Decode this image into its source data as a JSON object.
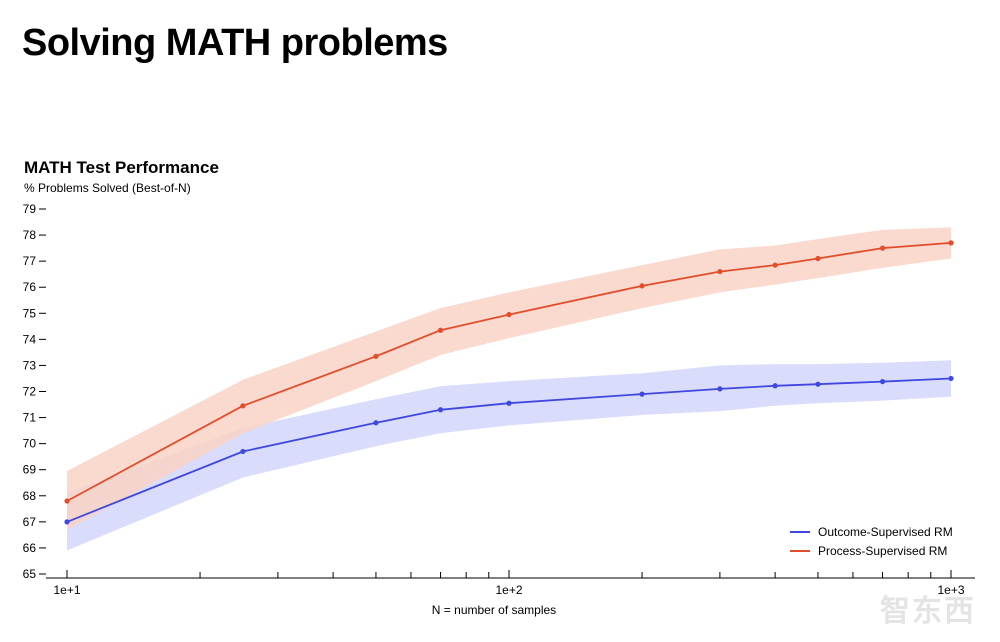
{
  "page": {
    "heading": "Solving MATH problems"
  },
  "watermark": {
    "text": "智东西"
  },
  "chart_data": {
    "type": "line",
    "title": "MATH Test Performance",
    "ylabel": "% Problems Solved (Best-of-N)",
    "xlabel": "N = number of samples",
    "xscale": "log",
    "xlim": [
      10,
      1000
    ],
    "ylim": [
      65,
      79
    ],
    "yticks": [
      65,
      66,
      67,
      68,
      69,
      70,
      71,
      72,
      73,
      74,
      75,
      76,
      77,
      78,
      79
    ],
    "xticks_major": [
      {
        "value": 10,
        "label": "1e+1"
      },
      {
        "value": 100,
        "label": "1e+2"
      },
      {
        "value": 1000,
        "label": "1e+3"
      }
    ],
    "xticks_minor": [
      20,
      30,
      40,
      50,
      60,
      70,
      80,
      90,
      200,
      300,
      400,
      500,
      600,
      700,
      800,
      900
    ],
    "legend_position": "bottom-right",
    "series": [
      {
        "name": "Outcome-Supervised RM",
        "color": "#4048e0",
        "band_color": "#d3d6fb",
        "x": [
          10,
          25,
          50,
          70,
          100,
          200,
          300,
          400,
          500,
          700,
          1000
        ],
        "y": [
          67.0,
          69.7,
          70.8,
          71.3,
          71.55,
          71.9,
          72.1,
          72.22,
          72.28,
          72.38,
          72.5
        ],
        "lower": [
          65.9,
          68.7,
          69.9,
          70.4,
          70.7,
          71.1,
          71.25,
          71.45,
          71.55,
          71.65,
          71.8
        ],
        "upper": [
          68.1,
          70.6,
          71.7,
          72.2,
          72.4,
          72.7,
          73.0,
          73.05,
          73.05,
          73.1,
          73.2
        ]
      },
      {
        "name": "Process-Supervised RM",
        "color": "#e24d2b",
        "band_color": "#f9d2c6",
        "x": [
          10,
          25,
          50,
          70,
          100,
          200,
          300,
          400,
          500,
          700,
          1000
        ],
        "y": [
          67.8,
          71.45,
          73.35,
          74.35,
          74.95,
          76.05,
          76.6,
          76.85,
          77.1,
          77.5,
          77.7
        ],
        "lower": [
          66.7,
          70.4,
          72.4,
          73.4,
          74.05,
          75.2,
          75.8,
          76.1,
          76.35,
          76.75,
          77.1
        ],
        "upper": [
          68.95,
          72.45,
          74.3,
          75.2,
          75.8,
          76.85,
          77.45,
          77.6,
          77.85,
          78.2,
          78.3
        ]
      }
    ]
  }
}
